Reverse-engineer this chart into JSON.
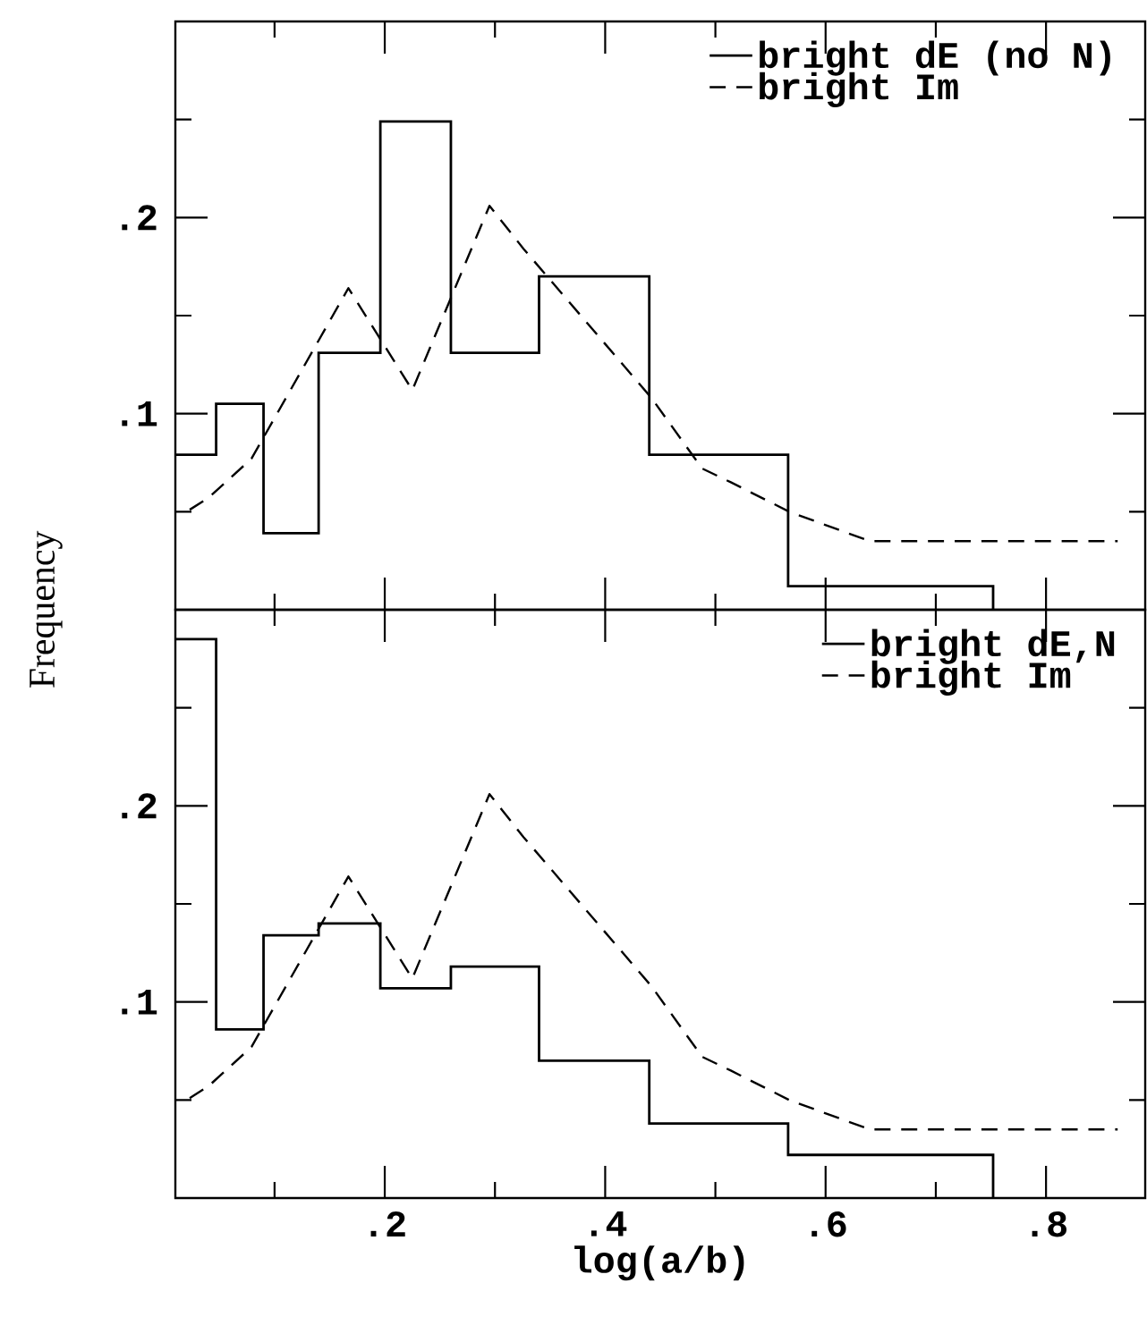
{
  "chart_data": [
    {
      "type": "histogram",
      "ylabel": "Frequency",
      "bins": [
        0.01,
        0.047,
        0.09,
        0.14,
        0.196,
        0.26,
        0.34,
        0.44,
        0.566,
        0.752
      ],
      "series": [
        {
          "name": "bright dE (no N)",
          "color": "#000000",
          "values": [
            0.079,
            0.105,
            0.039,
            0.131,
            0.249,
            0.131,
            0.17,
            0.079,
            0.012
          ]
        },
        {
          "name": "bright Im",
          "type": "line",
          "line_style": "dashed",
          "color": "#000000",
          "x": [
            0.023,
            0.04,
            0.079,
            0.167,
            0.225,
            0.295,
            0.326,
            0.442,
            0.488,
            0.514,
            0.567,
            0.64,
            0.865
          ],
          "values": [
            0.051,
            0.057,
            0.077,
            0.164,
            0.112,
            0.206,
            0.184,
            0.108,
            0.072,
            0.065,
            0.05,
            0.035,
            0.035
          ]
        }
      ],
      "xlim": [
        0.01,
        0.89
      ],
      "ylim": [
        0,
        0.3
      ],
      "xticks": [
        {
          "value": 0.1,
          "label": null
        },
        0.2,
        {
          "value": 0.3,
          "label": null
        },
        0.4,
        {
          "value": 0.5,
          "label": null
        },
        0.6,
        {
          "value": 0.7,
          "label": null
        },
        0.8
      ],
      "yticks": [
        {
          "value": 0.05,
          "label": null
        },
        {
          "value": 0.1,
          "label": ".1"
        },
        {
          "value": 0.15,
          "label": null
        },
        {
          "value": 0.2,
          "label": ".2"
        },
        {
          "value": 0.25,
          "label": null
        }
      ],
      "tick_labels": "y",
      "legend": "top right",
      "grid": false
    },
    {
      "type": "histogram",
      "xlabel": "log(a/b)",
      "bins": [
        0.01,
        0.047,
        0.09,
        0.14,
        0.196,
        0.26,
        0.34,
        0.44,
        0.566,
        0.752
      ],
      "series": [
        {
          "name": "bright dE,N",
          "color": "#000000",
          "values": [
            0.285,
            0.086,
            0.134,
            0.14,
            0.107,
            0.118,
            0.07,
            0.038,
            0.022
          ]
        },
        {
          "name": "bright Im",
          "type": "line",
          "line_style": "dashed",
          "color": "#000000",
          "x": [
            0.023,
            0.04,
            0.079,
            0.167,
            0.225,
            0.295,
            0.326,
            0.442,
            0.488,
            0.514,
            0.567,
            0.64,
            0.865
          ],
          "values": [
            0.051,
            0.057,
            0.077,
            0.164,
            0.112,
            0.206,
            0.184,
            0.108,
            0.072,
            0.065,
            0.05,
            0.035,
            0.035
          ]
        }
      ],
      "xlim": [
        0.01,
        0.89
      ],
      "ylim": [
        0,
        0.3
      ],
      "xticks": [
        {
          "value": 0.1,
          "label": null
        },
        {
          "value": 0.2,
          "label": ".2"
        },
        {
          "value": 0.3,
          "label": null
        },
        {
          "value": 0.4,
          "label": ".4"
        },
        {
          "value": 0.5,
          "label": null
        },
        {
          "value": 0.6,
          "label": ".6"
        },
        {
          "value": 0.7,
          "label": null
        },
        {
          "value": 0.8,
          "label": ".8"
        }
      ],
      "yticks": [
        {
          "value": 0.05,
          "label": null
        },
        {
          "value": 0.1,
          "label": ".1"
        },
        {
          "value": 0.15,
          "label": null
        },
        {
          "value": 0.2,
          "label": ".2"
        },
        {
          "value": 0.25,
          "label": null
        }
      ],
      "legend": "top right",
      "grid": false
    }
  ]
}
